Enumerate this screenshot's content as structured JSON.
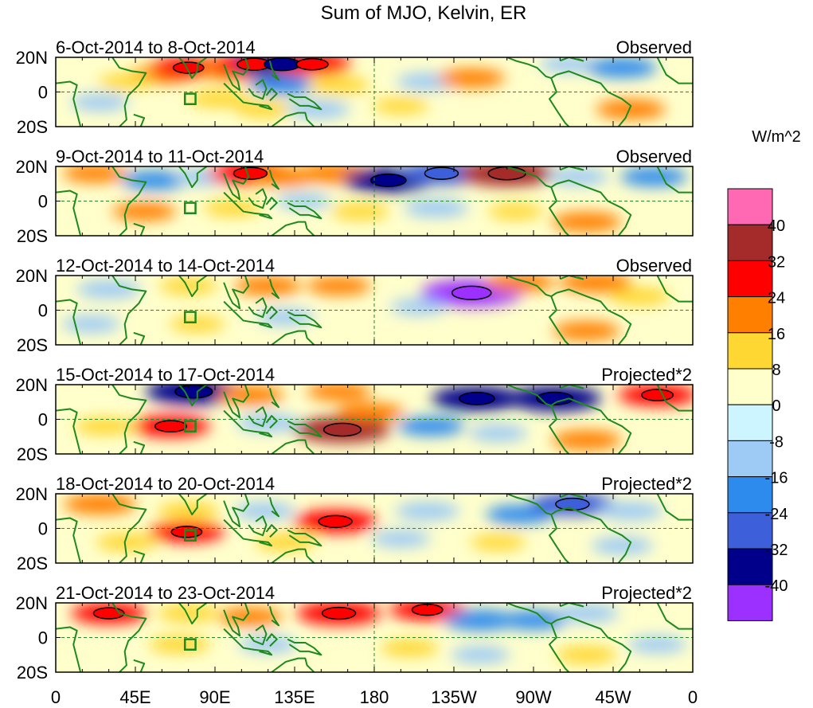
{
  "chart_data": {
    "type": "heatmap",
    "title": "Sum of MJO, Kelvin, ER",
    "units": "W/m^2",
    "x_ticks": [
      "0",
      "45E",
      "90E",
      "135E",
      "180",
      "135W",
      "90W",
      "45W",
      "0"
    ],
    "y_ticks": [
      "20N",
      "0",
      "20S"
    ],
    "xlim": [
      0,
      360
    ],
    "ylim": [
      -20,
      20
    ],
    "colorbar": {
      "labels": [
        "40",
        "32",
        "24",
        "16",
        "8",
        "0",
        "-8",
        "-16",
        "-24",
        "-32",
        "-40"
      ],
      "levels": [
        40,
        32,
        24,
        16,
        8,
        0,
        -8,
        -16,
        -24,
        -32,
        -40
      ],
      "colors": [
        "#ff69b4",
        "#a52a2a",
        "#ff0000",
        "#ff7f00",
        "#ffd733",
        "#ffffcc",
        "#ccf5ff",
        "#9ecbf5",
        "#2e8bee",
        "#3d5fd9",
        "#00008b",
        "#9b30ff"
      ]
    },
    "panels": [
      {
        "date_range": "6-Oct-2014 to 8-Oct-2014",
        "label": "Observed",
        "anomalies": [
          {
            "lon": 60,
            "lat": 10,
            "value": 16
          },
          {
            "lon": 75,
            "lat": 14,
            "value": 24
          },
          {
            "lon": 100,
            "lat": 12,
            "value": 18
          },
          {
            "lon": 112,
            "lat": 16,
            "value": 30
          },
          {
            "lon": 128,
            "lat": 16,
            "value": -36
          },
          {
            "lon": 145,
            "lat": 16,
            "value": 26
          },
          {
            "lon": 128,
            "lat": 4,
            "value": -18
          },
          {
            "lon": 160,
            "lat": 4,
            "value": 14
          },
          {
            "lon": 92,
            "lat": -4,
            "value": 14
          },
          {
            "lon": 118,
            "lat": -10,
            "value": 12
          },
          {
            "lon": 148,
            "lat": -10,
            "value": -16
          },
          {
            "lon": 210,
            "lat": 6,
            "value": -14
          },
          {
            "lon": 235,
            "lat": 8,
            "value": 18
          },
          {
            "lon": 290,
            "lat": 16,
            "value": -12
          },
          {
            "lon": 320,
            "lat": 14,
            "value": -20
          },
          {
            "lon": 325,
            "lat": -10,
            "value": 20
          },
          {
            "lon": 195,
            "lat": -8,
            "value": 10
          },
          {
            "lon": 25,
            "lat": -6,
            "value": -12
          },
          {
            "lon": 40,
            "lat": 6,
            "value": 10
          }
        ]
      },
      {
        "date_range": "9-Oct-2014 to 11-Oct-2014",
        "label": "Observed",
        "anomalies": [
          {
            "lon": 22,
            "lat": 16,
            "value": 16
          },
          {
            "lon": 56,
            "lat": 12,
            "value": -18
          },
          {
            "lon": 84,
            "lat": 14,
            "value": -14
          },
          {
            "lon": 110,
            "lat": 16,
            "value": 30
          },
          {
            "lon": 128,
            "lat": 14,
            "value": 18
          },
          {
            "lon": 158,
            "lat": 16,
            "value": 22
          },
          {
            "lon": 188,
            "lat": 12,
            "value": -34
          },
          {
            "lon": 218,
            "lat": 16,
            "value": -30
          },
          {
            "lon": 255,
            "lat": 16,
            "value": 38
          },
          {
            "lon": 295,
            "lat": 14,
            "value": -14
          },
          {
            "lon": 338,
            "lat": 14,
            "value": -18
          },
          {
            "lon": 50,
            "lat": -6,
            "value": 16
          },
          {
            "lon": 100,
            "lat": -4,
            "value": 12
          },
          {
            "lon": 172,
            "lat": -6,
            "value": 12
          },
          {
            "lon": 215,
            "lat": -4,
            "value": -16
          },
          {
            "lon": 260,
            "lat": -6,
            "value": 10
          },
          {
            "lon": 300,
            "lat": -12,
            "value": 20
          },
          {
            "lon": 140,
            "lat": 0,
            "value": -10
          }
        ]
      },
      {
        "date_range": "12-Oct-2014 to 14-Oct-2014",
        "label": "Observed",
        "anomalies": [
          {
            "lon": 30,
            "lat": 12,
            "value": -16
          },
          {
            "lon": 75,
            "lat": 14,
            "value": 12
          },
          {
            "lon": 120,
            "lat": 14,
            "value": 18
          },
          {
            "lon": 160,
            "lat": 14,
            "value": 16
          },
          {
            "lon": 235,
            "lat": 10,
            "value": -42
          },
          {
            "lon": 262,
            "lat": 16,
            "value": 20
          },
          {
            "lon": 305,
            "lat": 16,
            "value": 22
          },
          {
            "lon": 330,
            "lat": 8,
            "value": 14
          },
          {
            "lon": 130,
            "lat": -4,
            "value": -12
          },
          {
            "lon": 80,
            "lat": -8,
            "value": 10
          },
          {
            "lon": 300,
            "lat": -12,
            "value": 18
          },
          {
            "lon": 205,
            "lat": 2,
            "value": -10
          },
          {
            "lon": 20,
            "lat": -8,
            "value": -12
          }
        ]
      },
      {
        "date_range": "15-Oct-2014 to 17-Oct-2014",
        "label": "Projected*2",
        "anomalies": [
          {
            "lon": 78,
            "lat": 16,
            "value": -38
          },
          {
            "lon": 110,
            "lat": 14,
            "value": 18
          },
          {
            "lon": 160,
            "lat": 16,
            "value": 16
          },
          {
            "lon": 238,
            "lat": 12,
            "value": -34
          },
          {
            "lon": 282,
            "lat": 12,
            "value": -36
          },
          {
            "lon": 340,
            "lat": 14,
            "value": 26
          },
          {
            "lon": 65,
            "lat": -4,
            "value": 26
          },
          {
            "lon": 28,
            "lat": -4,
            "value": 14
          },
          {
            "lon": 162,
            "lat": -6,
            "value": 38
          },
          {
            "lon": 178,
            "lat": 4,
            "value": 18
          },
          {
            "lon": 120,
            "lat": -2,
            "value": -16
          },
          {
            "lon": 212,
            "lat": -4,
            "value": -18
          },
          {
            "lon": 300,
            "lat": -12,
            "value": 20
          },
          {
            "lon": 250,
            "lat": -8,
            "value": -12
          }
        ]
      },
      {
        "date_range": "18-Oct-2014 to 20-Oct-2014",
        "label": "Projected*2",
        "anomalies": [
          {
            "lon": 25,
            "lat": 14,
            "value": 22
          },
          {
            "lon": 75,
            "lat": 10,
            "value": 14
          },
          {
            "lon": 118,
            "lat": 10,
            "value": -14
          },
          {
            "lon": 158,
            "lat": 4,
            "value": 30
          },
          {
            "lon": 210,
            "lat": 10,
            "value": -16
          },
          {
            "lon": 262,
            "lat": 8,
            "value": -18
          },
          {
            "lon": 292,
            "lat": 14,
            "value": -30
          },
          {
            "lon": 325,
            "lat": 10,
            "value": -16
          },
          {
            "lon": 74,
            "lat": -2,
            "value": 24
          },
          {
            "lon": 40,
            "lat": -8,
            "value": 14
          },
          {
            "lon": 130,
            "lat": -8,
            "value": 14
          },
          {
            "lon": 195,
            "lat": -6,
            "value": -12
          },
          {
            "lon": 250,
            "lat": -8,
            "value": 10
          },
          {
            "lon": 320,
            "lat": -10,
            "value": -14
          }
        ]
      },
      {
        "date_range": "21-Oct-2014 to 23-Oct-2014",
        "label": "Projected*2",
        "anomalies": [
          {
            "lon": 30,
            "lat": 14,
            "value": 24
          },
          {
            "lon": 75,
            "lat": 14,
            "value": 14
          },
          {
            "lon": 160,
            "lat": 14,
            "value": 30
          },
          {
            "lon": 110,
            "lat": 12,
            "value": 16
          },
          {
            "lon": 210,
            "lat": 16,
            "value": 24
          },
          {
            "lon": 240,
            "lat": 10,
            "value": -22
          },
          {
            "lon": 270,
            "lat": 10,
            "value": -18
          },
          {
            "lon": 300,
            "lat": 14,
            "value": -16
          },
          {
            "lon": 70,
            "lat": -4,
            "value": 14
          },
          {
            "lon": 120,
            "lat": -4,
            "value": -12
          },
          {
            "lon": 200,
            "lat": -6,
            "value": 12
          },
          {
            "lon": 240,
            "lat": -10,
            "value": -12
          },
          {
            "lon": 300,
            "lat": -10,
            "value": 14
          },
          {
            "lon": 340,
            "lat": -4,
            "value": -12
          }
        ]
      }
    ]
  }
}
